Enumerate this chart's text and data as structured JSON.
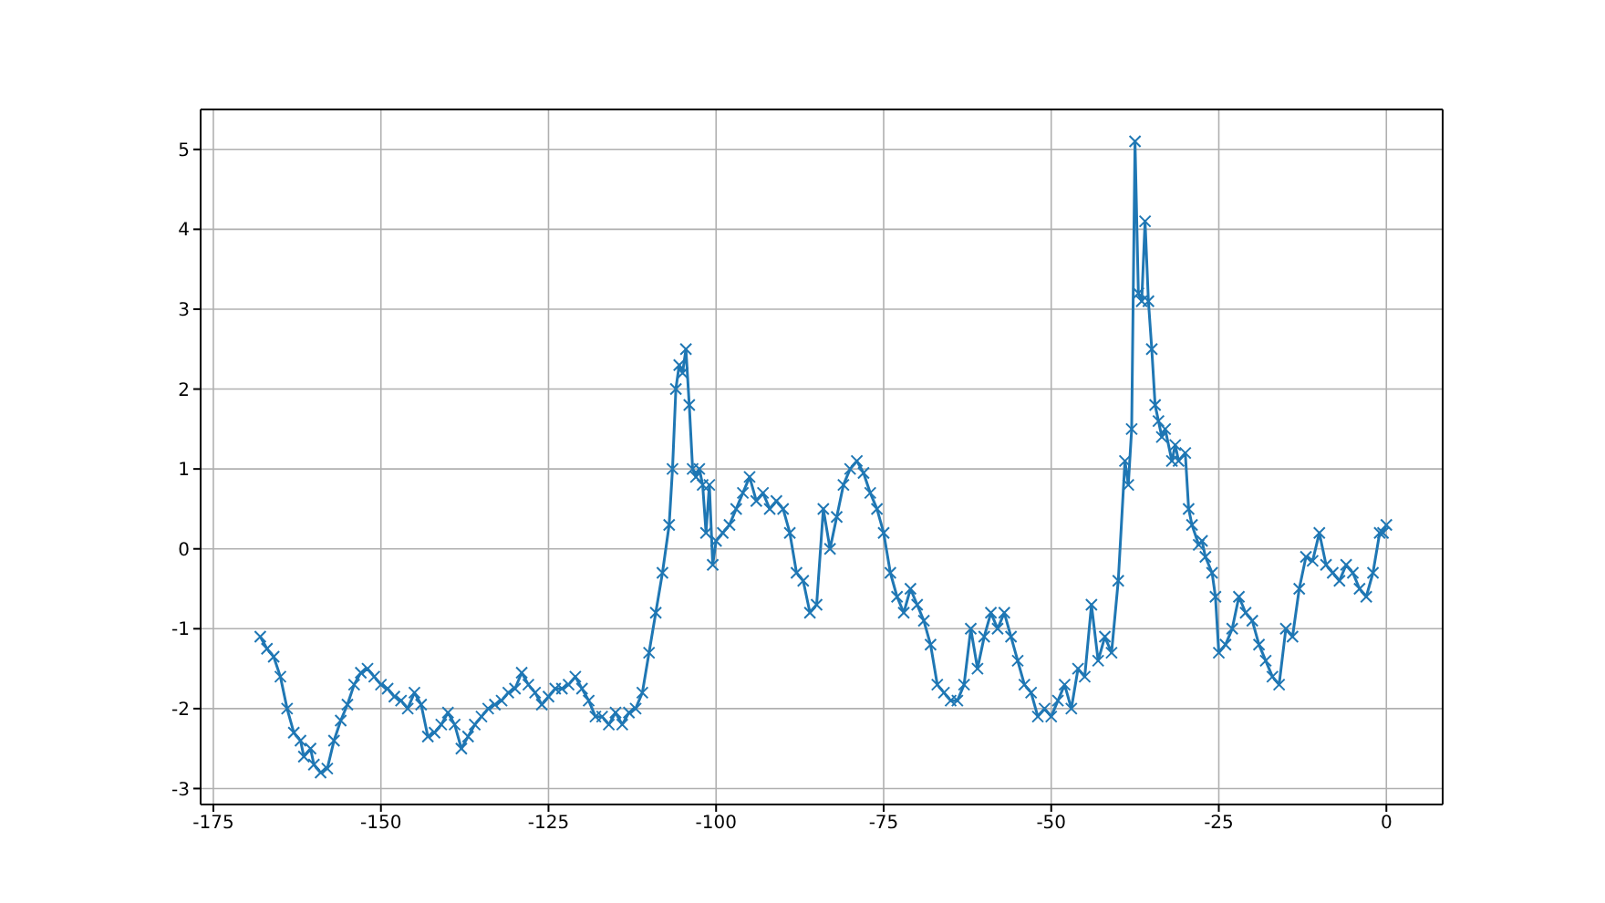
{
  "chart_data": {
    "type": "line",
    "marker": "cross",
    "grid": true,
    "xlim": [
      -176.9,
      8.4
    ],
    "ylim": [
      -3.2,
      5.5
    ],
    "xticks": [
      -175,
      -150,
      -125,
      -100,
      -75,
      -50,
      -25,
      0
    ],
    "yticks": [
      -3,
      -2,
      -1,
      0,
      1,
      2,
      3,
      4,
      5
    ],
    "x": [
      -168,
      -167,
      -166,
      -165,
      -164,
      -163,
      -162,
      -161.5,
      -160.5,
      -160,
      -159,
      -158,
      -157,
      -156,
      -155,
      -154,
      -153,
      -152,
      -151,
      -150,
      -149,
      -148,
      -147,
      -146,
      -145,
      -144,
      -143,
      -142,
      -141,
      -140,
      -139,
      -138,
      -137,
      -136,
      -135,
      -134,
      -133,
      -132,
      -131,
      -130,
      -129,
      -128,
      -127,
      -126,
      -125,
      -124,
      -123,
      -122,
      -121,
      -120,
      -119,
      -118,
      -117,
      -116,
      -115,
      -114,
      -113,
      -112,
      -111,
      -110,
      -109,
      -108,
      -107,
      -106.5,
      -106,
      -105.5,
      -105,
      -104.5,
      -104,
      -103.5,
      -103,
      -102.5,
      -102,
      -101.5,
      -101,
      -100.5,
      -100,
      -99,
      -98,
      -97,
      -96,
      -95,
      -94,
      -93,
      -92,
      -91,
      -90,
      -89,
      -88,
      -87,
      -86,
      -85,
      -84,
      -83,
      -82,
      -81,
      -80,
      -79,
      -78,
      -77,
      -76,
      -75,
      -74,
      -73,
      -72,
      -71,
      -70,
      -69,
      -68,
      -67,
      -66,
      -65,
      -64,
      -63,
      -62,
      -61,
      -60,
      -59,
      -58,
      -57,
      -56,
      -55,
      -54,
      -53,
      -52,
      -51,
      -50,
      -49,
      -48,
      -47,
      -46,
      -45,
      -44,
      -43,
      -42,
      -41,
      -40,
      -39,
      -38.5,
      -38,
      -37.5,
      -37,
      -36.5,
      -36,
      -35.5,
      -35,
      -34.5,
      -34,
      -33.5,
      -33,
      -32,
      -31.5,
      -31,
      -30,
      -29.5,
      -29,
      -28,
      -27.5,
      -27,
      -26,
      -25.5,
      -25,
      -24,
      -23,
      -22,
      -21,
      -20,
      -19,
      -18,
      -17,
      -16,
      -15,
      -14,
      -13,
      -12,
      -11,
      -10,
      -9,
      -8,
      -7,
      -6,
      -5,
      -4,
      -3,
      -2,
      -1,
      -0.5,
      0
    ],
    "series": [
      {
        "color": "#1f77b4",
        "values": [
          -1.1,
          -1.25,
          -1.35,
          -1.6,
          -2.0,
          -2.3,
          -2.4,
          -2.6,
          -2.5,
          -2.7,
          -2.8,
          -2.75,
          -2.4,
          -2.15,
          -1.95,
          -1.7,
          -1.55,
          -1.5,
          -1.6,
          -1.7,
          -1.75,
          -1.85,
          -1.9,
          -2.0,
          -1.8,
          -1.95,
          -2.35,
          -2.3,
          -2.2,
          -2.05,
          -2.2,
          -2.5,
          -2.35,
          -2.2,
          -2.1,
          -2.0,
          -1.95,
          -1.9,
          -1.8,
          -1.75,
          -1.55,
          -1.7,
          -1.8,
          -1.95,
          -1.85,
          -1.75,
          -1.75,
          -1.7,
          -1.6,
          -1.75,
          -1.9,
          -2.1,
          -2.1,
          -2.2,
          -2.05,
          -2.2,
          -2.05,
          -2.0,
          -1.8,
          -1.3,
          -0.8,
          -0.3,
          0.3,
          1.0,
          2.0,
          2.3,
          2.2,
          2.5,
          1.8,
          1.0,
          0.9,
          1.0,
          0.8,
          0.2,
          0.8,
          -0.2,
          0.1,
          0.2,
          0.3,
          0.5,
          0.7,
          0.9,
          0.6,
          0.7,
          0.5,
          0.6,
          0.5,
          0.2,
          -0.3,
          -0.4,
          -0.8,
          -0.7,
          0.5,
          0.0,
          0.4,
          0.8,
          1.0,
          1.1,
          0.95,
          0.7,
          0.5,
          0.2,
          -0.3,
          -0.6,
          -0.8,
          -0.5,
          -0.7,
          -0.9,
          -1.2,
          -1.7,
          -1.8,
          -1.9,
          -1.9,
          -1.7,
          -1.0,
          -1.5,
          -1.1,
          -0.8,
          -1.0,
          -0.8,
          -1.1,
          -1.4,
          -1.7,
          -1.8,
          -2.1,
          -2.0,
          -2.1,
          -1.9,
          -1.7,
          -2.0,
          -1.5,
          -1.6,
          -0.7,
          -1.4,
          -1.1,
          -1.3,
          -0.4,
          1.1,
          0.8,
          1.5,
          5.1,
          3.2,
          3.1,
          4.1,
          3.1,
          2.5,
          1.8,
          1.6,
          1.4,
          1.5,
          1.1,
          1.3,
          1.1,
          1.2,
          0.5,
          0.3,
          0.05,
          0.1,
          -0.1,
          -0.3,
          -0.6,
          -1.3,
          -1.2,
          -1.0,
          -0.6,
          -0.8,
          -0.9,
          -1.2,
          -1.4,
          -1.6,
          -1.7,
          -1.0,
          -1.1,
          -0.5,
          -0.1,
          -0.15,
          0.2,
          -0.2,
          -0.3,
          -0.4,
          -0.2,
          -0.3,
          -0.5,
          -0.6,
          -0.3,
          0.2,
          0.2,
          0.3
        ]
      }
    ]
  }
}
